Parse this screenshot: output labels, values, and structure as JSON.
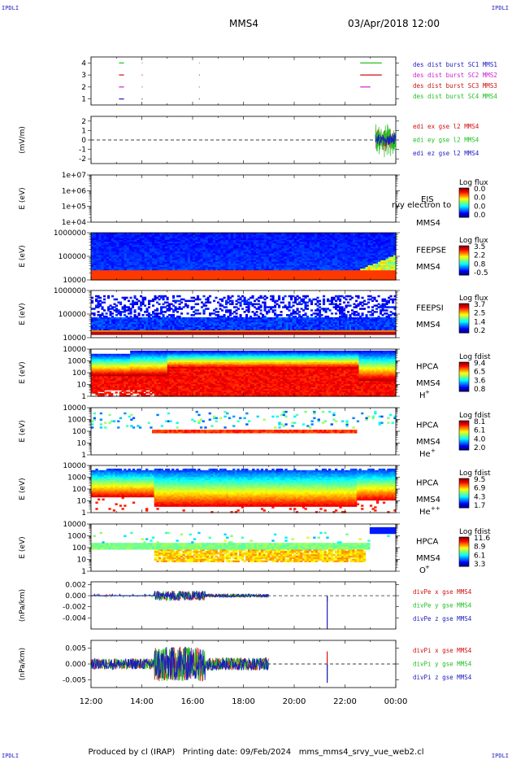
{
  "corners": {
    "tl": "IPDLI",
    "tr": "IPDLI",
    "bl": "IPDLI",
    "br": "IPDLI"
  },
  "header": {
    "spacecraft": "MMS4",
    "datetime": "03/Apr/2018 12:00"
  },
  "footer": "Produced by cl (IRAP)   Printing date: 09/Feb/2024   mms_mms4_srvy_vue_web2.cl",
  "colors": {
    "sc1": "#1c1cc0",
    "sc2": "#d020d0",
    "sc3": "#d01010",
    "sc4": "#22c022",
    "x": "#d01010",
    "y": "#22c022",
    "z": "#1c1cc0"
  },
  "chart_data": [
    {
      "type": "line",
      "panel": "burst",
      "xlabel": "",
      "ylabel": "",
      "ylim": [
        0.5,
        4.5
      ],
      "yticks": [
        "1",
        "2",
        "3",
        "4"
      ],
      "xticks": [
        "12:00",
        "14:00",
        "16:00",
        "18:00",
        "20:00",
        "22:00",
        "00:00"
      ],
      "legend": [
        {
          "name": "des dist burst SC1 MMS1",
          "color": "#1c1cc0"
        },
        {
          "name": "des dist burst SC2 MMS2",
          "color": "#d020d0"
        },
        {
          "name": "des dist burst SC3 MMS3",
          "color": "#d01010"
        },
        {
          "name": "des dist burst SC4 MMS4",
          "color": "#22c022"
        }
      ],
      "series": [
        {
          "name": "des dist burst SC4 MMS4",
          "level": 4,
          "intervals": [
            [
              13.1,
              13.3
            ],
            [
              14.0,
              14.03
            ],
            [
              16.25,
              16.28
            ],
            [
              22.6,
              23.45
            ]
          ]
        },
        {
          "name": "des dist burst SC3 MMS3",
          "level": 3,
          "intervals": [
            [
              13.1,
              13.3
            ],
            [
              14.0,
              14.03
            ],
            [
              16.25,
              16.28
            ],
            [
              22.6,
              23.45
            ]
          ]
        },
        {
          "name": "des dist burst SC2 MMS2",
          "level": 2,
          "intervals": [
            [
              13.1,
              13.3
            ],
            [
              14.0,
              14.03
            ],
            [
              16.25,
              16.28
            ],
            [
              22.6,
              23.0
            ]
          ]
        },
        {
          "name": "des dist burst SC1 MMS1",
          "level": 1,
          "intervals": [
            [
              13.1,
              13.3
            ],
            [
              14.0,
              14.03
            ],
            [
              16.25,
              16.28
            ]
          ]
        }
      ]
    },
    {
      "type": "line",
      "panel": "edi",
      "ylabel": "(mV/m)",
      "ylim": [
        -2.5,
        2.5
      ],
      "yticks": [
        "-2",
        "-1",
        "0",
        "1",
        "2"
      ],
      "legend": [
        {
          "name": "edi ex gse l2 MMS4",
          "color": "#d01010"
        },
        {
          "name": "edi ey gse l2 MMS4",
          "color": "#22c022"
        },
        {
          "name": "edi ez gse l2 MMS4",
          "color": "#1c1cc0"
        }
      ],
      "active_range": [
        23.2,
        24.0
      ],
      "amplitude": [
        1.5,
        2.0,
        0.8
      ]
    },
    {
      "type": "heatmap",
      "panel": "eis",
      "ylabel": "E (eV)",
      "ylim": [
        "1e+04",
        "1e+07"
      ],
      "yticks": [
        "1e+04",
        "1e+05",
        "1e+06",
        "1e+07"
      ],
      "labels": [
        "EIS",
        "MMS4"
      ],
      "overlay": "rvy electron to",
      "colorbar": {
        "title": "Log flux",
        "ticks": [
          "0.0",
          "0.0",
          "0.0",
          "0.0"
        ]
      }
    },
    {
      "type": "heatmap",
      "panel": "feeps-e",
      "ylabel": "E (eV)",
      "ylim": [
        10000,
        1000000
      ],
      "yticks": [
        "10000",
        "100000",
        "1000000"
      ],
      "labels": [
        "FEEPSE",
        "MMS4"
      ],
      "colorbar": {
        "title": "Log flux",
        "ticks": [
          "3.5",
          "2.2",
          "0.8",
          "-0.5"
        ]
      }
    },
    {
      "type": "heatmap",
      "panel": "feeps-i",
      "ylabel": "E (eV)",
      "ylim": [
        10000,
        1000000
      ],
      "yticks": [
        "10000",
        "100000",
        "1000000"
      ],
      "labels": [
        "FEEPSI",
        "MMS4"
      ],
      "colorbar": {
        "title": "Log flux",
        "ticks": [
          "3.7",
          "2.5",
          "1.4",
          "0.2"
        ]
      }
    },
    {
      "type": "heatmap",
      "panel": "hpca-h",
      "ylabel": "E (eV)",
      "ylim": [
        1,
        10000
      ],
      "yticks": [
        "1",
        "10",
        "100",
        "1000",
        "10000"
      ],
      "labels": [
        "HPCA",
        "MMS4"
      ],
      "species": "H",
      "charge": "+",
      "colorbar": {
        "title": "Log fdist",
        "ticks": [
          "9.4",
          "6.5",
          "3.6",
          "0.8"
        ]
      }
    },
    {
      "type": "heatmap",
      "panel": "hpca-he",
      "ylabel": "E (eV)",
      "ylim": [
        1,
        10000
      ],
      "yticks": [
        "1",
        "10",
        "100",
        "1000",
        "10000"
      ],
      "labels": [
        "HPCA",
        "MMS4"
      ],
      "species": "He",
      "charge": "+",
      "colorbar": {
        "title": "Log fdist",
        "ticks": [
          "8.1",
          "6.1",
          "4.0",
          "2.0"
        ]
      }
    },
    {
      "type": "heatmap",
      "panel": "hpca-he2",
      "ylabel": "E (eV)",
      "ylim": [
        1,
        10000
      ],
      "yticks": [
        "1",
        "10",
        "100",
        "1000",
        "10000"
      ],
      "labels": [
        "HPCA",
        "MMS4"
      ],
      "species": "He",
      "charge": "++",
      "colorbar": {
        "title": "Log fdist",
        "ticks": [
          "9.5",
          "6.9",
          "4.3",
          "1.7"
        ]
      }
    },
    {
      "type": "heatmap",
      "panel": "hpca-o",
      "ylabel": "E (eV)",
      "ylim": [
        1,
        10000
      ],
      "yticks": [
        "1",
        "10",
        "100",
        "1000",
        "10000"
      ],
      "labels": [
        "HPCA",
        "MMS4"
      ],
      "species": "O",
      "charge": "+",
      "colorbar": {
        "title": "Log fdist",
        "ticks": [
          "11.6",
          "8.9",
          "6.1",
          "3.3"
        ]
      }
    },
    {
      "type": "line",
      "panel": "divpe",
      "ylabel": "(nPa/km)",
      "ylim": [
        -0.006,
        0.0025
      ],
      "yticks": [
        "0.002",
        "0.000",
        "-0.002",
        "-0.004"
      ],
      "legend": [
        {
          "name": "divPe x gse MMS4",
          "color": "#d01010"
        },
        {
          "name": "divPe y gse MMS4",
          "color": "#22c022"
        },
        {
          "name": "divPe z gse MMS4",
          "color": "#1c1cc0"
        }
      ],
      "active_range": [
        12.0,
        19.0
      ],
      "spike_time": 21.3,
      "spike_min": -0.006
    },
    {
      "type": "line",
      "panel": "divpi",
      "ylabel": "(nPa/km)",
      "ylim": [
        -0.0075,
        0.0075
      ],
      "yticks": [
        "0.005",
        "0.000",
        "-0.005"
      ],
      "legend": [
        {
          "name": "divPi x gse MMS4",
          "color": "#d01010"
        },
        {
          "name": "divPi y gse MMS4",
          "color": "#22c022"
        },
        {
          "name": "divPi z gse MMS4",
          "color": "#1c1cc0"
        }
      ],
      "active_range": [
        12.0,
        19.0
      ],
      "spike_time": 21.3
    }
  ]
}
